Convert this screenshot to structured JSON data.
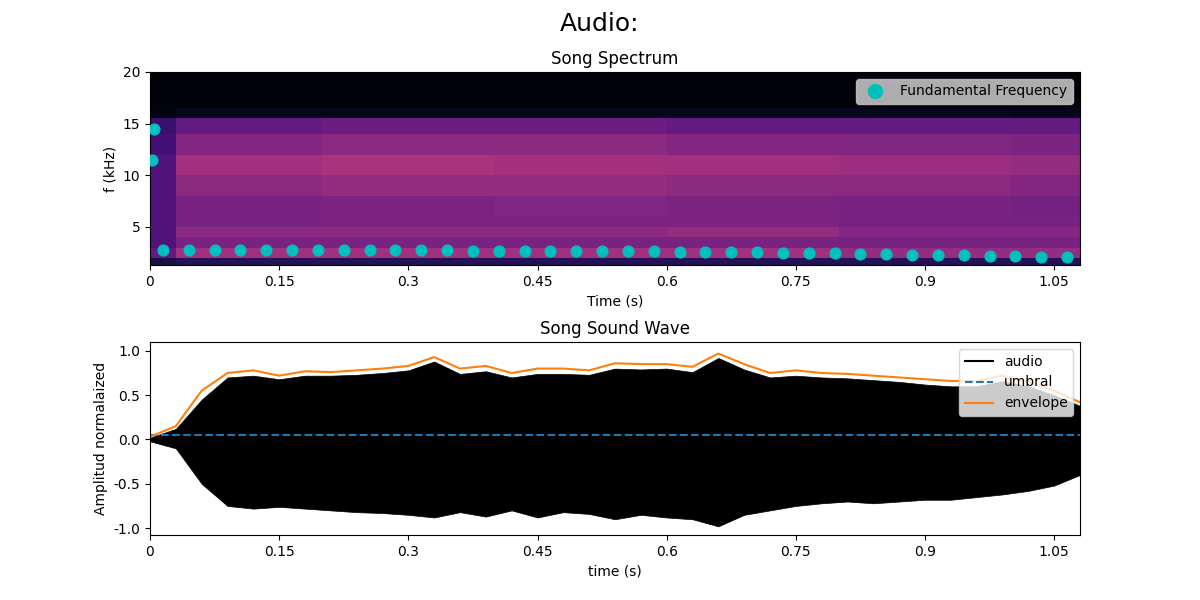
{
  "suptitle": "Audio:",
  "chart_data": [
    {
      "type": "heatmap",
      "title": "Song Spectrum",
      "xlabel": "Time (s)",
      "ylabel": "f (kHz)",
      "xlim": [
        0,
        1.08
      ],
      "ylim": [
        1.3,
        20
      ],
      "xticks": [
        0,
        0.15,
        0.3,
        0.45,
        0.6,
        0.75,
        0.9,
        1.05
      ],
      "yticks": [
        5,
        10,
        15,
        20
      ],
      "x_edges": [
        0,
        0.03,
        0.2,
        0.4,
        0.6,
        0.8,
        1.0,
        1.08
      ],
      "y_edges": [
        1.3,
        2,
        3,
        4,
        5,
        6,
        8,
        10,
        12,
        14,
        15.5,
        16.5,
        20
      ],
      "color_range": [
        0,
        1
      ],
      "cells": [
        [
          0.12,
          0.15,
          0.15,
          0.15,
          0.15,
          0.15,
          0.15
        ],
        [
          0.3,
          0.45,
          0.45,
          0.45,
          0.45,
          0.42,
          0.42
        ],
        [
          0.25,
          0.35,
          0.35,
          0.35,
          0.35,
          0.35,
          0.35
        ],
        [
          0.25,
          0.4,
          0.4,
          0.4,
          0.42,
          0.38,
          0.38
        ],
        [
          0.25,
          0.35,
          0.36,
          0.36,
          0.36,
          0.35,
          0.35
        ],
        [
          0.25,
          0.35,
          0.36,
          0.37,
          0.36,
          0.35,
          0.34
        ],
        [
          0.25,
          0.4,
          0.42,
          0.42,
          0.4,
          0.4,
          0.38
        ],
        [
          0.25,
          0.45,
          0.47,
          0.46,
          0.45,
          0.44,
          0.42
        ],
        [
          0.22,
          0.38,
          0.4,
          0.4,
          0.38,
          0.37,
          0.36
        ],
        [
          0.2,
          0.3,
          0.32,
          0.32,
          0.3,
          0.3,
          0.3
        ],
        [
          0.03,
          0.05,
          0.05,
          0.05,
          0.05,
          0.06,
          0.05
        ],
        [
          0.02,
          0.02,
          0.02,
          0.02,
          0.02,
          0.02,
          0.02
        ]
      ],
      "legend": "upper right",
      "series": [
        {
          "name": "Fundamental Frequency",
          "type": "scatter",
          "color": "#00bfbf",
          "marker": "o",
          "x": [
            0.002,
            0.005,
            0.015,
            0.045,
            0.075,
            0.105,
            0.135,
            0.165,
            0.195,
            0.225,
            0.255,
            0.285,
            0.315,
            0.345,
            0.375,
            0.405,
            0.435,
            0.465,
            0.495,
            0.525,
            0.555,
            0.585,
            0.615,
            0.645,
            0.675,
            0.705,
            0.735,
            0.765,
            0.795,
            0.825,
            0.855,
            0.885,
            0.915,
            0.945,
            0.975,
            1.005,
            1.035,
            1.065
          ],
          "values": [
            11.5,
            14.5,
            2.8,
            2.8,
            2.8,
            2.78,
            2.78,
            2.77,
            2.77,
            2.76,
            2.75,
            2.75,
            2.74,
            2.73,
            2.72,
            2.71,
            2.7,
            2.7,
            2.68,
            2.67,
            2.66,
            2.64,
            2.62,
            2.6,
            2.58,
            2.55,
            2.52,
            2.48,
            2.45,
            2.42,
            2.38,
            2.33,
            2.28,
            2.24,
            2.2,
            2.17,
            2.14,
            2.1
          ]
        }
      ]
    },
    {
      "type": "line",
      "title": "Song Sound Wave",
      "xlabel": "time (s)",
      "ylabel": "Amplitud normalaized",
      "xlim": [
        0,
        1.08
      ],
      "ylim": [
        -1.08,
        1.1
      ],
      "xticks": [
        0,
        0.15,
        0.3,
        0.45,
        0.6,
        0.75,
        0.9,
        1.05
      ],
      "yticks": [
        {
          "value": -1,
          "label": "-1.0"
        },
        -0.5,
        0.0,
        0.5,
        {
          "value": 1,
          "label": "1.0"
        }
      ],
      "legend": "upper right",
      "series": [
        {
          "name": "audio",
          "type": "area",
          "color": "#000000",
          "x": [
            0,
            0.03,
            0.06,
            0.09,
            0.12,
            0.15,
            0.18,
            0.21,
            0.24,
            0.27,
            0.3,
            0.33,
            0.36,
            0.39,
            0.42,
            0.45,
            0.48,
            0.51,
            0.54,
            0.57,
            0.6,
            0.63,
            0.66,
            0.69,
            0.72,
            0.75,
            0.78,
            0.81,
            0.84,
            0.87,
            0.9,
            0.93,
            0.96,
            0.99,
            1.02,
            1.05,
            1.08
          ],
          "values": [
            0.02,
            0.12,
            0.45,
            0.7,
            0.72,
            0.68,
            0.72,
            0.72,
            0.73,
            0.75,
            0.78,
            0.88,
            0.74,
            0.77,
            0.7,
            0.74,
            0.74,
            0.73,
            0.8,
            0.79,
            0.8,
            0.76,
            0.92,
            0.79,
            0.7,
            0.72,
            0.7,
            0.69,
            0.67,
            0.65,
            0.62,
            0.6,
            0.6,
            0.66,
            0.6,
            0.5,
            0.38
          ],
          "lower": [
            -0.02,
            -0.1,
            -0.5,
            -0.75,
            -0.78,
            -0.76,
            -0.78,
            -0.8,
            -0.82,
            -0.83,
            -0.85,
            -0.88,
            -0.82,
            -0.87,
            -0.8,
            -0.88,
            -0.82,
            -0.84,
            -0.9,
            -0.85,
            -0.88,
            -0.9,
            -0.98,
            -0.85,
            -0.8,
            -0.75,
            -0.72,
            -0.7,
            -0.72,
            -0.7,
            -0.68,
            -0.68,
            -0.65,
            -0.62,
            -0.58,
            -0.52,
            -0.4
          ]
        },
        {
          "name": "umbral",
          "type": "line",
          "color": "#1f77b4",
          "line_style": "dashed",
          "x": [
            0,
            1.08
          ],
          "values": [
            0.05,
            0.05
          ]
        },
        {
          "name": "envelope",
          "type": "line",
          "color": "#ff7f0e",
          "line_style": "solid",
          "x": [
            0,
            0.03,
            0.06,
            0.09,
            0.12,
            0.15,
            0.18,
            0.21,
            0.24,
            0.27,
            0.3,
            0.33,
            0.36,
            0.39,
            0.42,
            0.45,
            0.48,
            0.51,
            0.54,
            0.57,
            0.6,
            0.63,
            0.66,
            0.69,
            0.72,
            0.75,
            0.78,
            0.81,
            0.84,
            0.87,
            0.9,
            0.93,
            0.96,
            0.99,
            1.02,
            1.05,
            1.08
          ],
          "values": [
            0.03,
            0.15,
            0.55,
            0.75,
            0.78,
            0.72,
            0.77,
            0.76,
            0.78,
            0.8,
            0.83,
            0.93,
            0.8,
            0.83,
            0.75,
            0.8,
            0.8,
            0.78,
            0.86,
            0.85,
            0.85,
            0.82,
            0.97,
            0.85,
            0.75,
            0.78,
            0.75,
            0.74,
            0.72,
            0.7,
            0.68,
            0.66,
            0.66,
            0.72,
            0.65,
            0.55,
            0.42
          ]
        }
      ]
    }
  ]
}
